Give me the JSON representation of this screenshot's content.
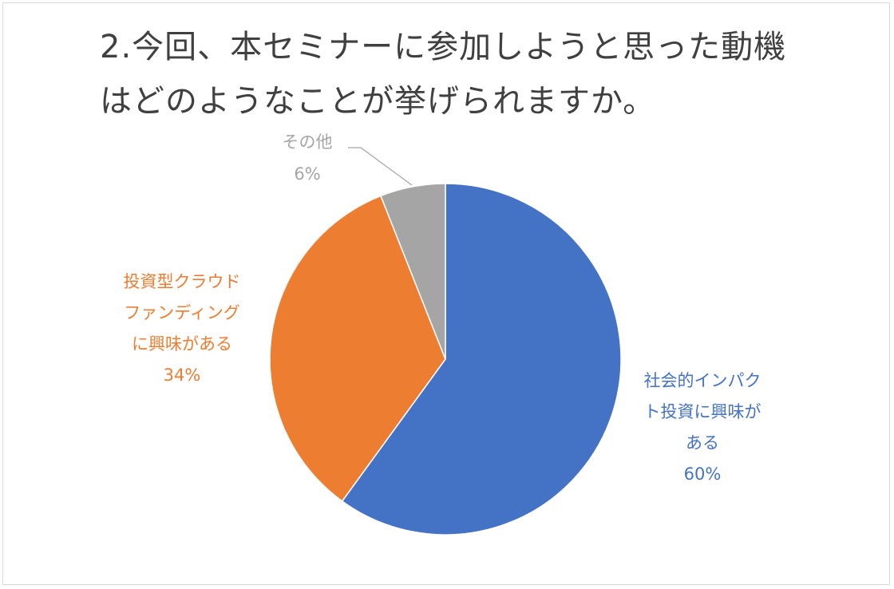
{
  "chart_data": {
    "type": "pie",
    "title_lines": [
      "2.今回、本セミナーに参加しようと思った動機",
      "はどのようなことが挙げられますか。"
    ],
    "slices": [
      {
        "label_lines": [
          "社会的インパク",
          "ト投資に興味が",
          "ある"
        ],
        "value": 60,
        "percent_label": "60%",
        "color": "#4472C4"
      },
      {
        "label_lines": [
          "投資型クラウド",
          "ファンディング",
          "に興味がある"
        ],
        "value": 34,
        "percent_label": "34%",
        "color": "#ED7D31"
      },
      {
        "label_lines": [
          "その他"
        ],
        "value": 6,
        "percent_label": "6%",
        "color": "#A5A5A5"
      }
    ]
  }
}
